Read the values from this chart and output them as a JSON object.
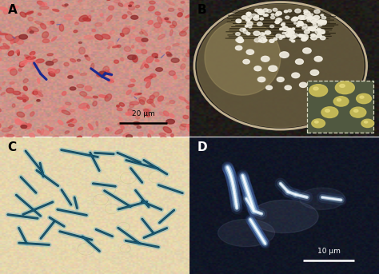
{
  "fig_width": 4.74,
  "fig_height": 3.43,
  "dpi": 100,
  "panel_A": {
    "label": "A",
    "bg_color": "#e8b898",
    "scale_bar": "20 μm",
    "bact_color": "#1a2a90"
  },
  "panel_B": {
    "label": "B",
    "bg_color": "#1a1a18",
    "dish_color": "#4a4030",
    "agar_color": "#a09060",
    "colony_color": "#f0ece0",
    "inset_bg": "#384028",
    "inset_colony": "#c8bc60"
  },
  "panel_C": {
    "label": "C",
    "bg_color": "#e8d8b0",
    "rod_color_dark": "#0a3850",
    "rod_color_mid": "#2a7090",
    "rod_color_light": "#80c0c8"
  },
  "panel_D": {
    "label": "D",
    "bg_color": "#060c18",
    "glow_color": "#8ab8d8",
    "bright_color": "#dce8f8",
    "scale_bar": "10 μm"
  }
}
